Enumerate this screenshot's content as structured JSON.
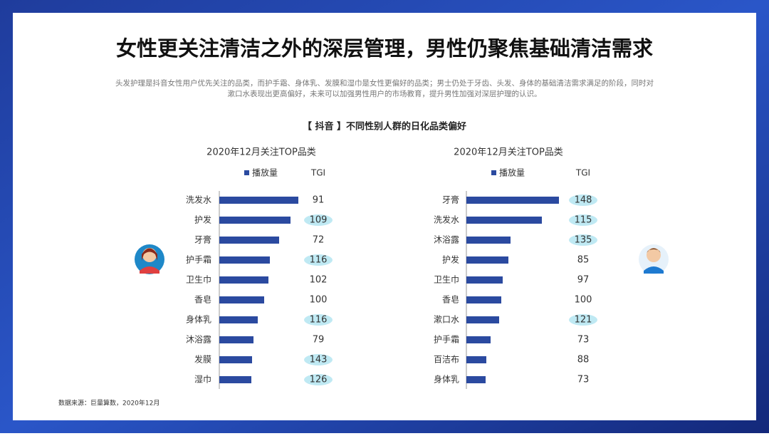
{
  "title": "女性更关注清洁之外的深层管理，男性仍聚焦基础清洁需求",
  "description": [
    "头发护理是抖音女性用户优先关注的品类，而护手霜、身体乳、发膜和湿巾是女性更偏好的品类；男士仍处于牙齿、头发、身体的基础清洁需求满足的阶段，同时对",
    "漱口水表现出更高偏好，未来可以加强男性用户的市场教育，提升男性加强对深层护理的认识。"
  ],
  "subtitle": "【 抖音 】不同性别人群的日化品类偏好",
  "source": "数据来源：巨量算数，2020年12月",
  "chart_data": [
    {
      "type": "bar",
      "orientation": "horizontal",
      "title": "2020年12月关注TOP品类",
      "categories": [
        "洗发水",
        "护发",
        "牙膏",
        "护手霜",
        "卫生巾",
        "香皂",
        "身体乳",
        "沐浴露",
        "发膜",
        "湿巾"
      ],
      "series": [
        {
          "name": "播放量",
          "color": "#2b4aa0",
          "values": [
            111,
            100,
            84,
            71,
            69,
            63,
            54,
            48,
            46,
            45
          ]
        }
      ],
      "xlim": [
        0,
        140
      ],
      "tgi_header": "TGI",
      "tgi": [
        91,
        109,
        72,
        116,
        102,
        100,
        116,
        79,
        143,
        126
      ],
      "tgi_highlight": [
        false,
        true,
        false,
        true,
        false,
        false,
        true,
        false,
        true,
        true
      ],
      "highlight_color": "#bfe9f3"
    },
    {
      "type": "bar",
      "orientation": "horizontal",
      "title": "2020年12月关注TOP品类",
      "categories": [
        "牙膏",
        "洗发水",
        "沐浴露",
        "护发",
        "卫生巾",
        "香皂",
        "漱口水",
        "护手霜",
        "百洁布",
        "身体乳"
      ],
      "series": [
        {
          "name": "播放量",
          "color": "#2b4aa0",
          "values": [
            130,
            106,
            62,
            59,
            51,
            49,
            46,
            34,
            28,
            27
          ]
        }
      ],
      "xlim": [
        0,
        140
      ],
      "tgi_header": "TGI",
      "tgi": [
        148,
        115,
        135,
        85,
        97,
        100,
        121,
        73,
        88,
        73
      ],
      "tgi_highlight": [
        true,
        true,
        true,
        false,
        false,
        false,
        true,
        false,
        false,
        false
      ],
      "highlight_color": "#bfe9f3"
    }
  ]
}
